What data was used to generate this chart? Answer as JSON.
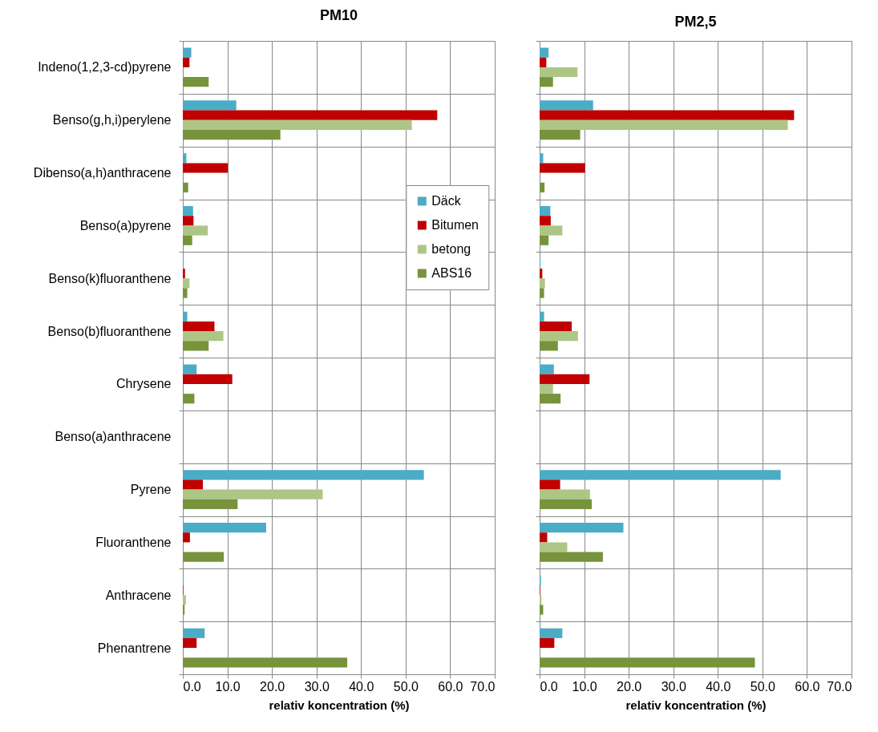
{
  "chart_data": [
    {
      "type": "bar",
      "orientation": "horizontal",
      "title": "PM10",
      "xlabel": "relativ koncentration (%)",
      "categories": [
        "Indeno(1,2,3-cd)pyrene",
        "Benso(g,h,i)perylene",
        "Dibenso(a,h)anthracene",
        "Benso(a)pyrene",
        "Benso(k)fluoranthene",
        "Benso(b)fluoranthene",
        "Chrysene",
        "Benso(a)anthracene",
        "Pyrene",
        "Fluoranthene",
        "Anthracene",
        "Phenantrene"
      ],
      "series": [
        {
          "name": "Däck",
          "color": "#4bacc6",
          "values": [
            1.9,
            12.0,
            0.8,
            2.3,
            0.1,
            1.0,
            3.1,
            null,
            54.1,
            18.7,
            0.2,
            4.9
          ]
        },
        {
          "name": "Bitumen",
          "color": "#c00000",
          "values": [
            1.5,
            57.1,
            10.1,
            2.4,
            0.5,
            7.1,
            11.1,
            null,
            4.5,
            1.6,
            0.1,
            3.1
          ]
        },
        {
          "name": "betong",
          "color": "#adc686",
          "values": [
            null,
            51.4,
            null,
            5.6,
            1.5,
            9.1,
            null,
            null,
            31.4,
            null,
            0.7,
            null
          ]
        },
        {
          "name": "ABS16",
          "color": "#77933c",
          "values": [
            5.8,
            21.9,
            1.2,
            2.1,
            1.0,
            5.8,
            2.6,
            null,
            12.3,
            9.2,
            0.4,
            36.9
          ]
        }
      ],
      "xlim": [
        0,
        70
      ],
      "xticks": [
        {
          "value": 0,
          "label": "0.0"
        },
        {
          "value": 10,
          "label": "10.0"
        },
        {
          "value": 20,
          "label": "20.0"
        },
        {
          "value": 30,
          "label": "30.0"
        },
        {
          "value": 40,
          "label": "40.0"
        },
        {
          "value": 50,
          "label": "50.0"
        },
        {
          "value": 60,
          "label": "60.0"
        },
        {
          "value": 70,
          "label": "70.0"
        }
      ],
      "grid": true,
      "legend": "right"
    },
    {
      "type": "bar",
      "orientation": "horizontal",
      "title": "PM2,5",
      "xlabel": "relativ koncentration (%)",
      "categories": [
        "Indeno(1,2,3-cd)pyrene",
        "Benso(g,h,i)perylene",
        "Dibenso(a,h)anthracene",
        "Benso(a)pyrene",
        "Benso(k)fluoranthene",
        "Benso(b)fluoranthene",
        "Chrysene",
        "Benso(a)anthracene",
        "Pyrene",
        "Fluoranthene",
        "Anthracene",
        "Phenantrene"
      ],
      "series": [
        {
          "name": "Däck",
          "color": "#4bacc6",
          "values": [
            2.0,
            12.0,
            0.8,
            2.4,
            0.2,
            1.0,
            3.2,
            null,
            54.1,
            18.8,
            0.3,
            5.1
          ]
        },
        {
          "name": "Bitumen",
          "color": "#c00000",
          "values": [
            1.5,
            57.1,
            10.2,
            2.5,
            0.6,
            7.2,
            11.2,
            null,
            4.6,
            1.7,
            0.1,
            3.3
          ]
        },
        {
          "name": "betong",
          "color": "#adc686",
          "values": [
            8.5,
            55.7,
            null,
            5.1,
            1.2,
            8.6,
            3.0,
            null,
            11.3,
            6.2,
            0.4,
            null
          ]
        },
        {
          "name": "ABS16",
          "color": "#77933c",
          "values": [
            3.0,
            9.1,
            1.1,
            2.0,
            1.0,
            4.1,
            4.7,
            null,
            11.7,
            14.2,
            0.8,
            48.3
          ]
        }
      ],
      "xlim": [
        0,
        70
      ],
      "xticks": [
        {
          "value": 0,
          "label": "0.0"
        },
        {
          "value": 10,
          "label": "10.0"
        },
        {
          "value": 20,
          "label": "20.0"
        },
        {
          "value": 30,
          "label": "30.0"
        },
        {
          "value": 40,
          "label": "40.0"
        },
        {
          "value": 50,
          "label": "50.0"
        },
        {
          "value": 60,
          "label": "60.0"
        },
        {
          "value": 70,
          "label": "70.0"
        }
      ],
      "grid": true,
      "tick_labels": "x"
    }
  ]
}
